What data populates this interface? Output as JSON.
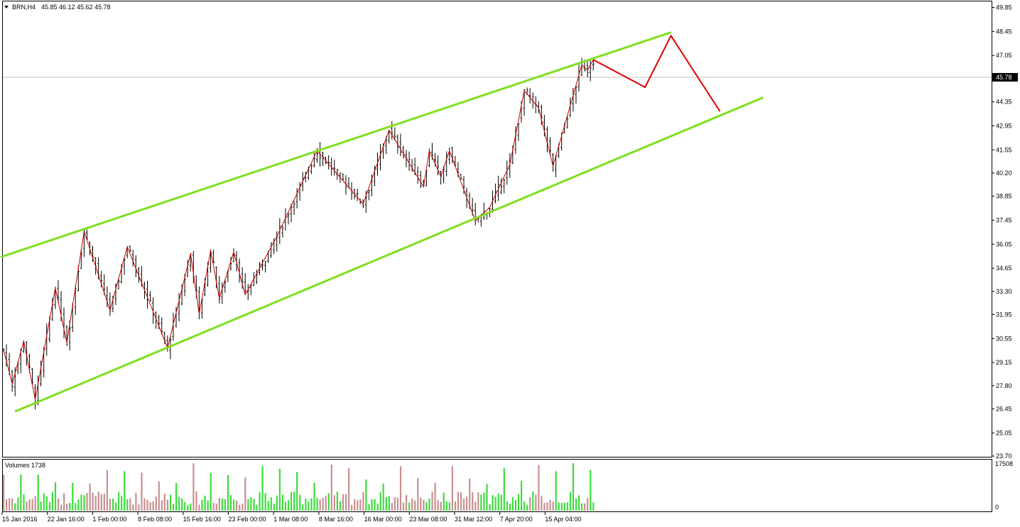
{
  "header": {
    "symbol": "BRN,H4",
    "ohlc": "45.85 46.12 45.62 45.78"
  },
  "volumes": {
    "label": "Volumes 1738",
    "axis_labels": [
      "17508",
      "0"
    ],
    "max": 17508
  },
  "colors": {
    "channel": "#7FE01F",
    "zigzag": "#D00000",
    "projection": "#E00000",
    "candle": "#000000",
    "volume_up": "#3CDC3C",
    "volume_down": "#C89090",
    "current_line": "#C0C0C0"
  },
  "chart_data": {
    "type": "candlestick",
    "ylim": [
      23.7,
      50.5
    ],
    "price_ticks": [
      "49.85",
      "48.45",
      "47.05",
      "45.70",
      "44.35",
      "42.95",
      "41.55",
      "40.20",
      "38.85",
      "37.45",
      "36.05",
      "34.65",
      "33.30",
      "31.95",
      "30.55",
      "29.15",
      "27.80",
      "26.45",
      "25.05",
      "23.70"
    ],
    "current_price": "45.78",
    "time_ticks": [
      "15 Jan 2016",
      "22 Jan 16:00",
      "1 Feb 00:00",
      "8 Feb 08:00",
      "15 Feb 16:00",
      "23 Feb 00:00",
      "1 Mar 08:00",
      "8 Mar 16:00",
      "16 Mar 00:00",
      "23 Mar 08:00",
      "31 Mar 12:00",
      "7 Apr 20:00",
      "15 Apr 04:00"
    ],
    "bar_count": 200,
    "zigzag": [
      {
        "i": 0,
        "p": 29.9
      },
      {
        "i": 3,
        "p": 27.9
      },
      {
        "i": 7,
        "p": 30.4
      },
      {
        "i": 11,
        "p": 27.0
      },
      {
        "i": 18,
        "p": 33.5
      },
      {
        "i": 22,
        "p": 30.3
      },
      {
        "i": 28,
        "p": 36.8
      },
      {
        "i": 37,
        "p": 32.2
      },
      {
        "i": 43,
        "p": 35.9
      },
      {
        "i": 53,
        "p": 31.7
      },
      {
        "i": 57,
        "p": 30.0
      },
      {
        "i": 65,
        "p": 35.5
      },
      {
        "i": 68,
        "p": 32.0
      },
      {
        "i": 72,
        "p": 35.7
      },
      {
        "i": 75,
        "p": 32.9
      },
      {
        "i": 80,
        "p": 35.6
      },
      {
        "i": 84,
        "p": 33.1
      },
      {
        "i": 95,
        "p": 36.5
      },
      {
        "i": 109,
        "p": 41.5
      },
      {
        "i": 125,
        "p": 38.4
      },
      {
        "i": 134,
        "p": 42.7
      },
      {
        "i": 146,
        "p": 39.4
      },
      {
        "i": 148,
        "p": 41.5
      },
      {
        "i": 152,
        "p": 40.0
      },
      {
        "i": 155,
        "p": 41.5
      },
      {
        "i": 164,
        "p": 37.4
      },
      {
        "i": 169,
        "p": 38.2
      },
      {
        "i": 176,
        "p": 40.7
      },
      {
        "i": 181,
        "p": 45.0
      },
      {
        "i": 186,
        "p": 44.0
      },
      {
        "i": 191,
        "p": 40.6
      },
      {
        "i": 201,
        "p": 46.5
      },
      {
        "i": 203,
        "p": 46.2
      },
      {
        "i": 205,
        "p": 46.8
      }
    ],
    "channel_upper": [
      {
        "i": -1,
        "p": 35.3
      },
      {
        "i": 232,
        "p": 48.4
      }
    ],
    "channel_lower": [
      {
        "i": 4,
        "p": 26.3
      },
      {
        "i": 264,
        "p": 44.6
      }
    ],
    "projection": [
      {
        "i": 205,
        "p": 46.8
      },
      {
        "i": 223,
        "p": 45.2
      },
      {
        "i": 232,
        "p": 48.2
      },
      {
        "i": 249,
        "p": 43.8
      }
    ]
  }
}
